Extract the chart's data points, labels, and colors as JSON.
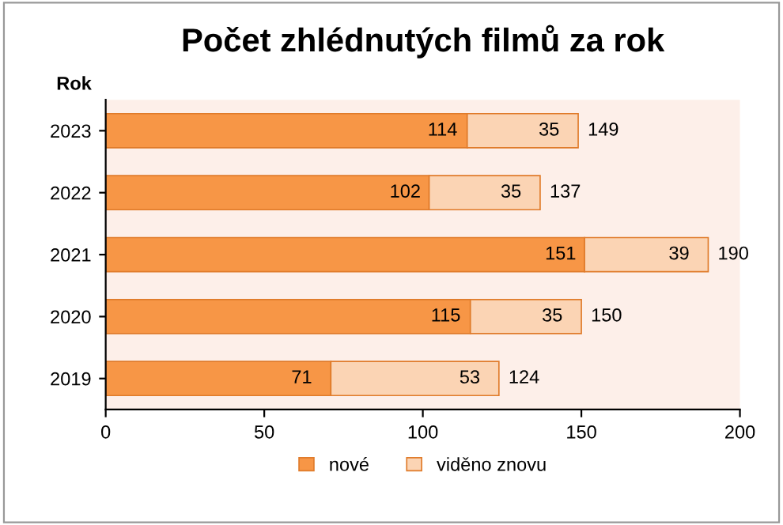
{
  "chart_data": {
    "type": "bar",
    "orientation": "horizontal",
    "stacked": true,
    "title": "Počet zhlédnutých filmů za rok",
    "ylabel": "Rok",
    "categories": [
      "2023",
      "2022",
      "2021",
      "2020",
      "2019"
    ],
    "series": [
      {
        "name": "nové",
        "color": "#f79646",
        "values": [
          114,
          102,
          151,
          115,
          71
        ]
      },
      {
        "name": "viděno znovu",
        "color": "#fbd4b4",
        "values": [
          35,
          35,
          39,
          35,
          53
        ]
      }
    ],
    "totals": [
      "149",
      "137",
      "190",
      "150",
      "124"
    ],
    "data_labels": true,
    "xlim": [
      0,
      200
    ],
    "xticks": [
      0,
      50,
      100,
      150,
      200
    ],
    "grid": false,
    "legend": "bottom"
  }
}
